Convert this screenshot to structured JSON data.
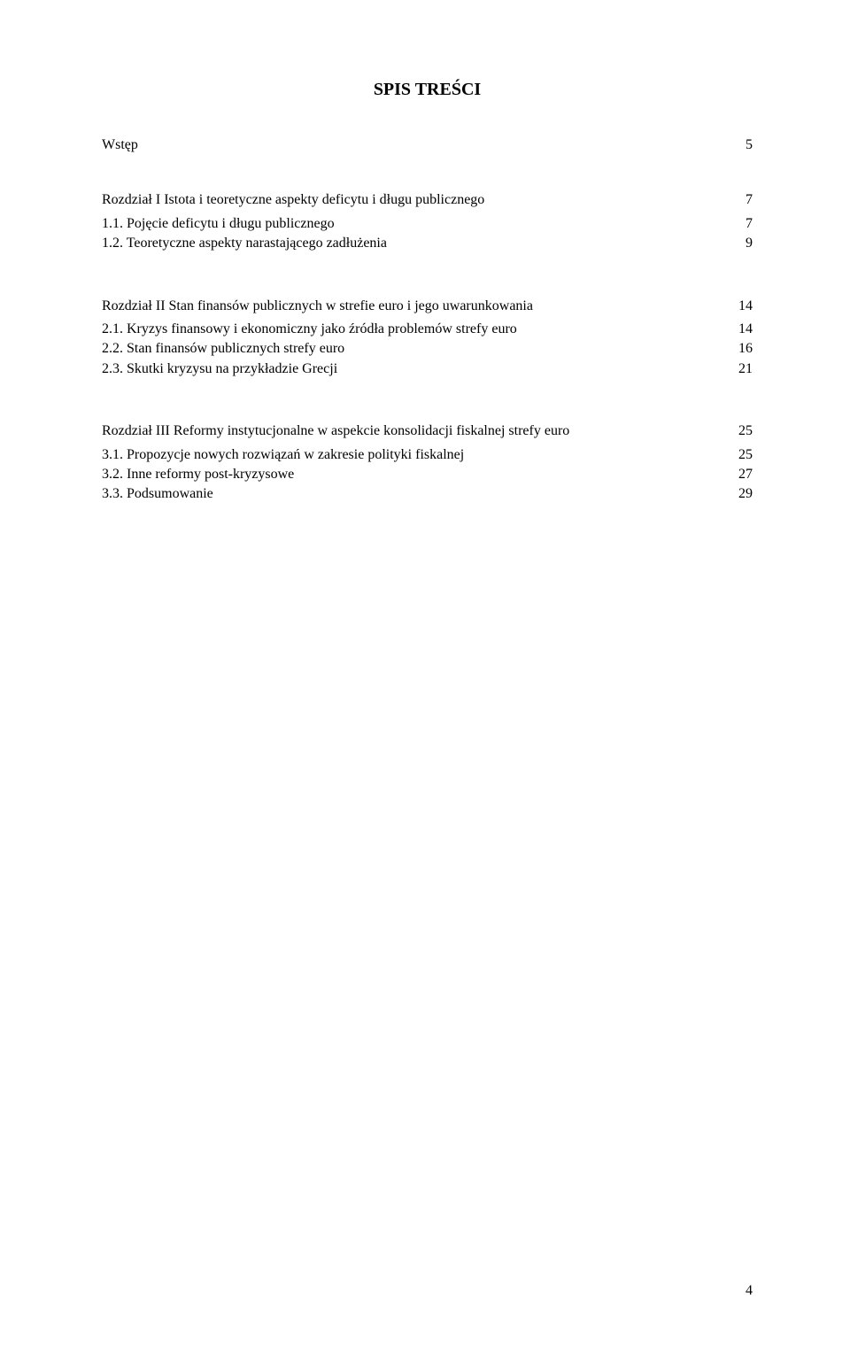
{
  "title": "SPIS TREŚCI",
  "entries": [
    {
      "text": "Wstęp",
      "page": "5"
    },
    {
      "text": "Rozdział I    Istota i teoretyczne aspekty deficytu i długu publicznego",
      "page": "7"
    },
    {
      "text": "1.1. Pojęcie deficytu i długu publicznego",
      "page": "7"
    },
    {
      "text": "1.2. Teoretyczne aspekty narastającego zadłużenia",
      "page": "9"
    },
    {
      "text": "Rozdział II    Stan finansów publicznych w strefie euro i jego uwarunkowania",
      "page": "14"
    },
    {
      "text": "2.1. Kryzys finansowy i ekonomiczny jako źródła problemów strefy euro",
      "page": "14"
    },
    {
      "text": "2.2. Stan finansów publicznych strefy euro",
      "page": "16"
    },
    {
      "text": "2.3. Skutki kryzysu  na przykładzie Grecji",
      "page": "21"
    },
    {
      "text": "Rozdział III  Reformy instytucjonalne w aspekcie konsolidacji fiskalnej strefy euro",
      "page": "25"
    },
    {
      "text": "3.1. Propozycje nowych rozwiązań w zakresie polityki fiskalnej",
      "page": "25"
    },
    {
      "text": "3.2. Inne  reformy post-kryzysowe",
      "page": "27"
    },
    {
      "text": "3.3. Podsumowanie",
      "page": "29"
    }
  ],
  "footerPage": "4"
}
